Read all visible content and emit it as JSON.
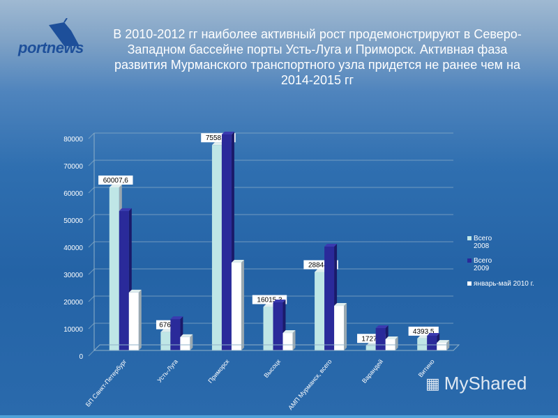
{
  "logo_text": "portnews",
  "title": "В 2010-2012 гг наиболее активный рост продемонстрируют в Северо-Западном бассейне порты Усть-Луга и Приморск. Активная фаза развития Мурманского транспортного узла придется не ранее чем на 2014-2015 гг",
  "watermark": "MyShared",
  "chart_data": {
    "type": "bar",
    "title": "",
    "xlabel": "",
    "ylabel": "",
    "ylim": [
      0,
      80000
    ],
    "yticks": [
      "0",
      "10000",
      "20000",
      "30000",
      "40000",
      "50000",
      "60000",
      "70000",
      "80000"
    ],
    "grid": true,
    "legend_position": "right",
    "categories": [
      "БП Санкт-Петербург",
      "Усть-Луга",
      "Приморск",
      "Высоцк",
      "АМП Мурманск, всего",
      "Варандей",
      "Витино"
    ],
    "series": [
      {
        "name": "Всего 2008",
        "color": "#bfe6e6",
        "values": [
          60007.6,
          6763,
          75581.9,
          16015.3,
          28844.5,
          1727.4,
          4393.5
        ],
        "labels": [
          "60007,6",
          "6763",
          "75581,9",
          "16015,3",
          "28844,5",
          "1727,4",
          "4393,5"
        ]
      },
      {
        "name": "Всего 2009",
        "color": "#2a2a9a",
        "values": [
          51300,
          11500,
          79500,
          17700,
          38200,
          8200,
          5400
        ]
      },
      {
        "name": "январь-май 2010 г.",
        "color": "#ffffff",
        "values": [
          21300,
          4900,
          32300,
          6400,
          16400,
          4100,
          2800
        ]
      }
    ]
  }
}
